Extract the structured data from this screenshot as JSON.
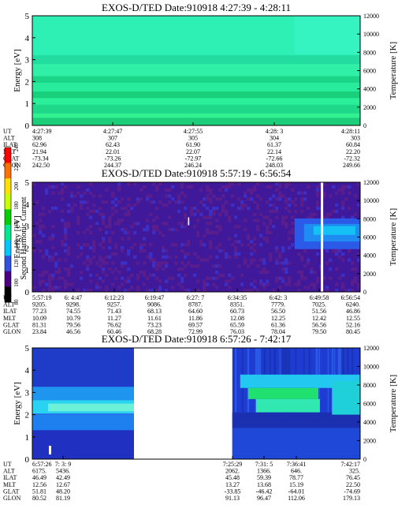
{
  "chart_data": [
    {
      "type": "heatmap",
      "title": "EXOS-D/TED   Date:910918  4:27:39 - 4:28:11",
      "ylabel": "Energy [eV]",
      "y2label": "Temperature [K]",
      "ylim": [
        0,
        5
      ],
      "y2lim": [
        0,
        12000
      ],
      "y_ticks": [
        "0",
        "1",
        "2",
        "3",
        "4",
        "5"
      ],
      "y2_ticks": [
        "0",
        "2000",
        "4000",
        "6000",
        "8000",
        "10000",
        "12000"
      ],
      "pattern": "stripes",
      "orbit_labels": [
        "UT",
        "ALT",
        "ILAT",
        "MLT",
        "GLAT",
        "GLON"
      ],
      "orbit_columns": [
        [
          "4:27:39",
          "308",
          "62.96",
          "21.94",
          "-73.34",
          "242.50"
        ],
        [
          "4:27:47",
          "307",
          "62.43",
          "22.01",
          "-73.26",
          "244.37"
        ],
        [
          "4:27:55",
          "305",
          "61.90",
          "22.07",
          "-72.97",
          "246.24"
        ],
        [
          "4:28: 3",
          "304",
          "61.37",
          "22.14",
          "-72.66",
          "248.03"
        ],
        [
          "4:28:11",
          "303",
          "60.84",
          "22.20",
          "-72.32",
          "249.66"
        ]
      ]
    },
    {
      "type": "heatmap",
      "title": "EXOS-D/TED   Date:910918  5:57:19 - 6:56:54",
      "ylabel": "Energy [eV]",
      "y2label": "Temperature [K]",
      "ylim": [
        0,
        5
      ],
      "y2lim": [
        0,
        12000
      ],
      "y_ticks": [
        "0",
        "1",
        "2",
        "3",
        "4",
        "5"
      ],
      "y2_ticks": [
        "0",
        "2000",
        "4000",
        "6000",
        "8000",
        "10000",
        "12000"
      ],
      "pattern": "noise",
      "orbit_labels": [
        "UT",
        "ALT",
        "ILAT",
        "MLT",
        "GLAT",
        "GLON"
      ],
      "orbit_columns": [
        [
          "5:57:19",
          "9205.",
          "77.23",
          "10.09",
          "81.31",
          "23.84"
        ],
        [
          "6: 4:47",
          "9298.",
          "74.55",
          "10.79",
          "79.56",
          "46.56"
        ],
        [
          "6:12:23",
          "9257.",
          "71.43",
          "11.27",
          "76.62",
          "60.46"
        ],
        [
          "6:19:47",
          "9086.",
          "68.13",
          "11.61",
          "73.23",
          "68.28"
        ],
        [
          "6:27: 7",
          "8787.",
          "64.60",
          "11.86",
          "69.57",
          "72.99"
        ],
        [
          "6:34:35",
          "8351.",
          "60.73",
          "12.08",
          "65.59",
          "76.03"
        ],
        [
          "6:42: 3",
          "7779.",
          "56.50",
          "12.25",
          "61.36",
          "78.04"
        ],
        [
          "6:49:58",
          "7025.",
          "51.56",
          "12.42",
          "56.56",
          "79.50"
        ],
        [
          "6:56:54",
          "6240.",
          "46.86",
          "12.55",
          "52.16",
          "80.45"
        ]
      ]
    },
    {
      "type": "heatmap",
      "title": "EXOS-D/TED   Date:910918  6:57:26 - 7:42:17",
      "ylabel": "Energy [eV]",
      "y2label": "Temperature [K]",
      "ylim": [
        0,
        5
      ],
      "y2lim": [
        0,
        12000
      ],
      "y_ticks": [
        "0",
        "1",
        "2",
        "3",
        "4",
        "5"
      ],
      "y2_ticks": [
        "0",
        "2000",
        "4000",
        "6000",
        "8000",
        "10000",
        "12000"
      ],
      "pattern": "gap",
      "orbit_labels": [
        "UT",
        "ALT",
        "ILAT",
        "MLT",
        "GLAT",
        "GLON"
      ],
      "orbit_columns": [
        [
          "6:57:26",
          "6175.",
          "46.49",
          "12.56",
          "51.81",
          "80.52"
        ],
        [
          "7: 3: 9",
          "5436.",
          "42.49",
          "12.67",
          "48.20",
          "81.19"
        ],
        [
          "7:25:29",
          "2062.",
          "45.48",
          "13.27",
          "-33.85",
          "91.13"
        ],
        [
          "7:31: 5",
          "1366.",
          "59.39",
          "13.68",
          "-46.42",
          "96.47"
        ],
        [
          "7:36:41",
          "646.",
          "78.77",
          "15.19",
          "-64.01",
          "112.06"
        ],
        [
          "7:42:17",
          "325.",
          "76.45",
          "22.50",
          "-74.69",
          "179.13"
        ]
      ]
    }
  ],
  "colorbar": {
    "label": "Second Harmonic Current",
    "ticks": [
      "80",
      "100",
      "120",
      "140",
      "160",
      "180",
      "200",
      "220",
      "240"
    ],
    "colors": [
      "#000000",
      "#4b0082",
      "#3050e0",
      "#00c8ff",
      "#00e890",
      "#00d000",
      "#c8ff00",
      "#ffe000",
      "#ff7000",
      "#ff0000"
    ]
  }
}
